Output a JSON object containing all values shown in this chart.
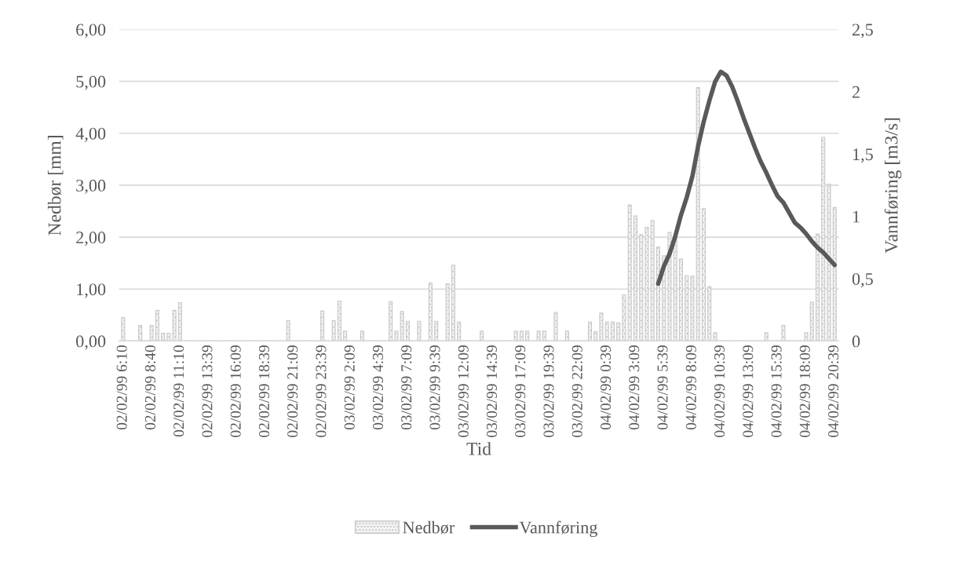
{
  "chart_data": {
    "type": "bar",
    "xlabel": "Tid",
    "ylabel": "Nedbør [mm]",
    "y2label": "Vannføring [m3/s]",
    "categories": [
      "02/02/99 6:10",
      null,
      null,
      null,
      null,
      "02/02/99 8:40",
      null,
      null,
      null,
      null,
      "02/02/99 11:10",
      null,
      null,
      null,
      null,
      "02/02/99 13:39",
      null,
      null,
      null,
      null,
      "02/02/99 16:09",
      null,
      null,
      null,
      null,
      "02/02/99 18:39",
      null,
      null,
      null,
      null,
      "02/02/99 21:09",
      null,
      null,
      null,
      null,
      "02/02/99 23:39",
      null,
      null,
      null,
      null,
      "03/02/99 2:09",
      null,
      null,
      null,
      null,
      "03/02/99 4:39",
      null,
      null,
      null,
      null,
      "03/02/99 7:09",
      null,
      null,
      null,
      null,
      "03/02/99 9:39",
      null,
      null,
      null,
      null,
      "03/02/99 12:09",
      null,
      null,
      null,
      null,
      "03/02/99 14:39",
      null,
      null,
      null,
      null,
      "03/02/99 17:09",
      null,
      null,
      null,
      null,
      "03/02/99 19:39",
      null,
      null,
      null,
      null,
      "03/02/99 22:09",
      null,
      null,
      null,
      null,
      "04/02/99 0:39",
      null,
      null,
      null,
      null,
      "04/02/99 3:09",
      null,
      null,
      null,
      null,
      "04/02/99 5:39",
      null,
      null,
      null,
      null,
      "04/02/99 8:09",
      null,
      null,
      null,
      null,
      "04/02/99 10:39",
      null,
      null,
      null,
      null,
      "04/02/99 13:09",
      null,
      null,
      null,
      null,
      "04/02/99 15:39",
      null,
      null,
      null,
      null,
      "04/02/99 18:09",
      null,
      null,
      null,
      null,
      "04/02/99 20:39"
    ],
    "series": [
      {
        "name": "Nedbør",
        "color": "#c8c8c8",
        "values": [
          0.45,
          0,
          0,
          0.3,
          0,
          0.3,
          0.59,
          0.15,
          0.15,
          0.59,
          0.74,
          0,
          0,
          0,
          0,
          0,
          0,
          0,
          0,
          0,
          0,
          0,
          0,
          0,
          0,
          0,
          0,
          0,
          0,
          0.39,
          0,
          0,
          0,
          0,
          0,
          0.58,
          0,
          0.39,
          0.77,
          0.19,
          0,
          0,
          0.19,
          0,
          0,
          0,
          0,
          0.76,
          0.19,
          0.57,
          0.38,
          0,
          0.38,
          0,
          1.12,
          0.38,
          0,
          1.1,
          1.46,
          0.37,
          0,
          0,
          0,
          0.19,
          0,
          0,
          0,
          0,
          0,
          0.19,
          0.19,
          0.19,
          0,
          0.19,
          0.19,
          0,
          0.55,
          0,
          0.19,
          0,
          0,
          0,
          0.37,
          0.18,
          0.54,
          0.37,
          0.37,
          0.35,
          0.89,
          2.62,
          2.41,
          2.05,
          2.19,
          2.32,
          1.81,
          1.64,
          2.09,
          2.03,
          1.58,
          1.26,
          1.25,
          4.88,
          2.55,
          1.05,
          0.16,
          0,
          0,
          0,
          0,
          0,
          0,
          0,
          0,
          0.16,
          0,
          0,
          0.3,
          0,
          0,
          0,
          0.16,
          0.75,
          2.06,
          3.92,
          3.02,
          2.57
        ]
      },
      {
        "name": "Vannføring",
        "type": "line",
        "axis": "y2",
        "color": "#595959",
        "values": [
          null,
          null,
          null,
          null,
          null,
          null,
          null,
          null,
          null,
          null,
          null,
          null,
          null,
          null,
          null,
          null,
          null,
          null,
          null,
          null,
          null,
          null,
          null,
          null,
          null,
          null,
          null,
          null,
          null,
          null,
          null,
          null,
          null,
          null,
          null,
          null,
          null,
          null,
          null,
          null,
          null,
          null,
          null,
          null,
          null,
          null,
          null,
          null,
          null,
          null,
          null,
          null,
          null,
          null,
          null,
          null,
          null,
          null,
          null,
          null,
          null,
          null,
          null,
          null,
          null,
          null,
          null,
          null,
          null,
          null,
          null,
          null,
          null,
          null,
          null,
          null,
          null,
          null,
          null,
          null,
          null,
          null,
          null,
          null,
          null,
          null,
          null,
          null,
          null,
          null,
          null,
          null,
          null,
          null,
          0.46,
          0.6,
          0.7,
          0.84,
          1.01,
          1.15,
          1.32,
          1.56,
          1.76,
          1.93,
          2.08,
          2.16,
          2.13,
          2.04,
          1.92,
          1.79,
          1.67,
          1.55,
          1.44,
          1.35,
          1.25,
          1.16,
          1.11,
          1.03,
          0.95,
          0.91,
          0.86,
          0.8,
          0.75,
          0.71,
          0.66,
          0.61
        ]
      }
    ],
    "ylim": [
      0,
      6
    ],
    "yticks": [
      {
        "value": 0,
        "label": "0,00"
      },
      {
        "value": 1,
        "label": "1,00"
      },
      {
        "value": 2,
        "label": "2,00"
      },
      {
        "value": 3,
        "label": "3,00"
      },
      {
        "value": 4,
        "label": "4,00"
      },
      {
        "value": 5,
        "label": "5,00"
      },
      {
        "value": 6,
        "label": "6,00"
      }
    ],
    "y2lim": [
      0,
      2.5
    ],
    "y2ticks": [
      0,
      {
        "value": 0.5,
        "label": "0,5"
      },
      1,
      {
        "value": 1.5,
        "label": "1,5"
      },
      2,
      {
        "value": 2.5,
        "label": "2,5"
      }
    ],
    "grid": "y",
    "legend": "bottom",
    "line_style": "solid",
    "marker": "none"
  }
}
